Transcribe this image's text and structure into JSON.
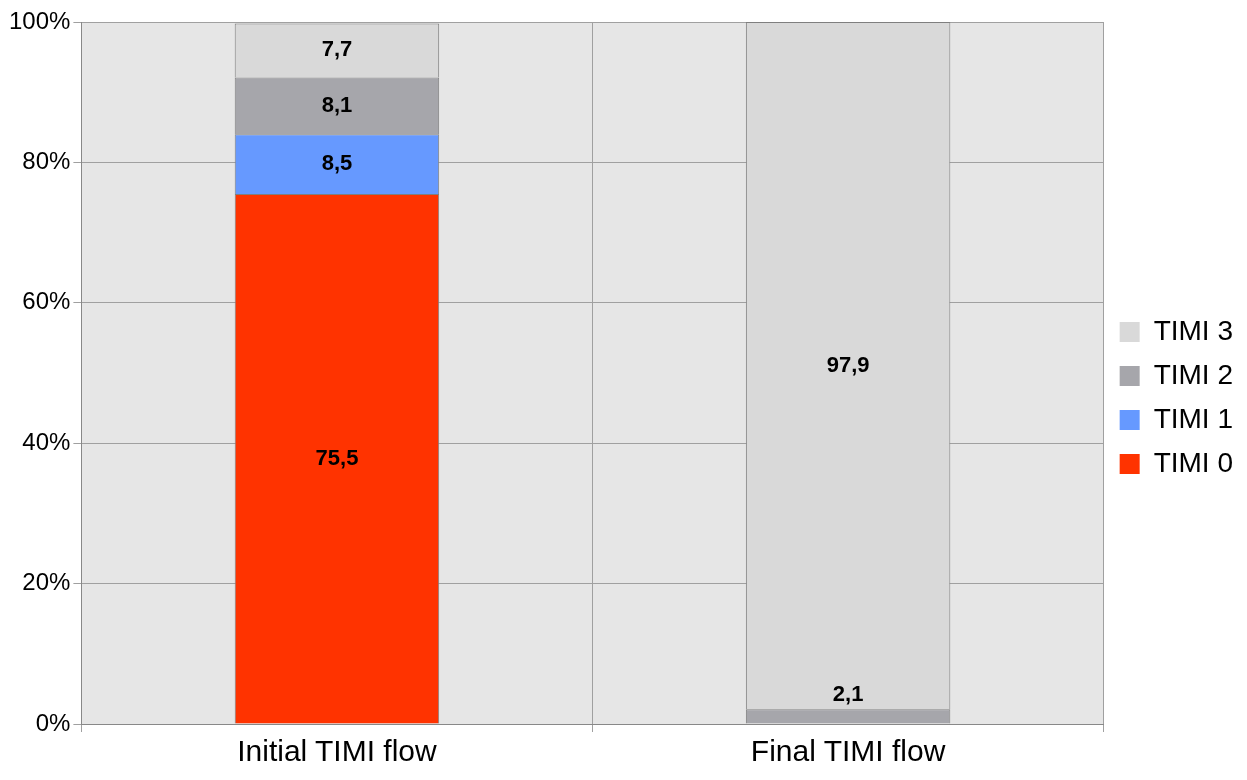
{
  "chart_data": {
    "type": "bar",
    "stacked": true,
    "categories": [
      "Initial TIMI flow",
      "Final TIMI flow"
    ],
    "series": [
      {
        "name": "TIMI 0",
        "color": "#ff3300",
        "values": [
          75.5,
          0
        ],
        "value_labels": [
          "75,5",
          null
        ]
      },
      {
        "name": "TIMI 1",
        "color": "#6699ff",
        "values": [
          8.5,
          0
        ],
        "value_labels": [
          "8,5",
          null
        ]
      },
      {
        "name": "TIMI 2",
        "color": "#a6a6ab",
        "values": [
          8.1,
          2.1
        ],
        "value_labels": [
          "8,1",
          "2,1"
        ]
      },
      {
        "name": "TIMI 3",
        "color": "#d9d9d9",
        "values": [
          7.7,
          97.9
        ],
        "value_labels": [
          "7,7",
          "97,9"
        ]
      }
    ],
    "ylim": [
      0,
      100
    ],
    "yticks": [
      {
        "value": 0,
        "label": "0%"
      },
      {
        "value": 20,
        "label": "20%"
      },
      {
        "value": 40,
        "label": "40%"
      },
      {
        "value": 60,
        "label": "60%"
      },
      {
        "value": 80,
        "label": "80%"
      },
      {
        "value": 100,
        "label": "100%"
      }
    ],
    "grid": true,
    "legend": "right"
  }
}
